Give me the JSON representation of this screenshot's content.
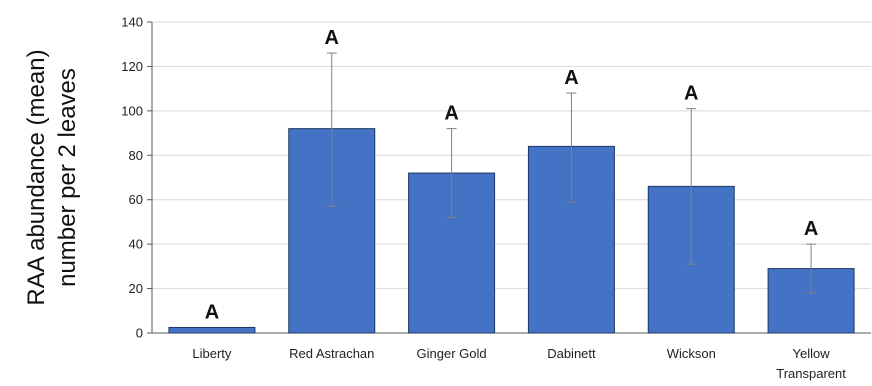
{
  "chart_data": {
    "type": "bar",
    "title": "",
    "xlabel": "",
    "ylabel_lines": [
      "RAA abundance (mean)",
      "number per 2 leaves"
    ],
    "ylim": [
      0,
      140
    ],
    "yticks": [
      0,
      20,
      40,
      60,
      80,
      100,
      120,
      140
    ],
    "categories": [
      [
        "Liberty"
      ],
      [
        "Red Astrachan"
      ],
      [
        "Ginger Gold"
      ],
      [
        "Dabinett"
      ],
      [
        "Wickson"
      ],
      [
        "Yellow",
        "Transparent"
      ]
    ],
    "values": [
      2.5,
      92,
      72,
      84,
      66,
      29
    ],
    "error_upper": [
      2.5,
      126,
      92,
      108,
      101,
      40
    ],
    "error_lower": [
      2.5,
      57,
      52,
      59,
      31,
      18
    ],
    "significance_labels": [
      "A",
      "A",
      "A",
      "A",
      "A",
      "A"
    ],
    "grid": true,
    "bar_color": "#4472C4",
    "bar_edge_color": "#1F3864",
    "error_bar_color": "#808080",
    "grid_color": "#D9D9D9"
  }
}
